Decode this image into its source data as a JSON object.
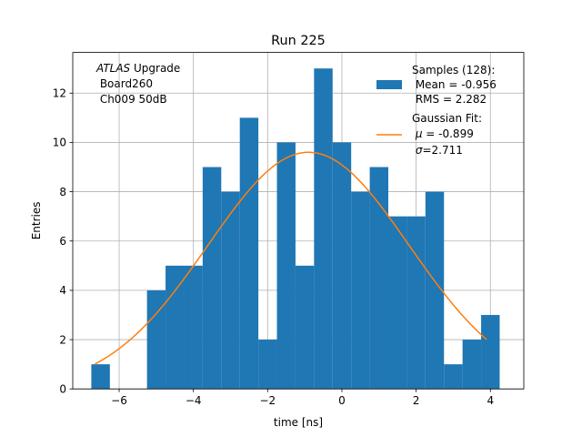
{
  "chart_data": {
    "type": "bar",
    "title": "Run 225",
    "xlabel": "time [ns]",
    "ylabel": "Entries",
    "xlim": [
      -7.25,
      4.9
    ],
    "ylim": [
      0,
      13.65
    ],
    "xticks": [
      -6,
      -4,
      -2,
      0,
      2,
      4
    ],
    "xtick_labels": [
      "−6",
      "−4",
      "−2",
      "0",
      "2",
      "4"
    ],
    "yticks": [
      0,
      2,
      4,
      6,
      8,
      10,
      12
    ],
    "ytick_labels": [
      "0",
      "2",
      "4",
      "6",
      "8",
      "10",
      "12"
    ],
    "grid": true,
    "bin_start": -6.75,
    "bin_width": 0.5,
    "values": [
      1,
      0,
      0,
      4,
      5,
      5,
      9,
      8,
      11,
      2,
      10,
      5,
      13,
      10,
      8,
      9,
      7,
      7,
      8,
      1,
      2,
      3
    ],
    "series": [
      {
        "name": "Samples (128):\n Mean = -0.956\n RMS = 2.282",
        "color": "#1f77b4",
        "kind": "histogram"
      },
      {
        "name": "Gaussian Fit:\n μ = -0.899\n σ=2.711",
        "color": "#ff7f0e",
        "kind": "line",
        "fit": {
          "amplitude": 9.6,
          "mu": -0.899,
          "sigma": 2.711,
          "x_start": -6.65,
          "x_end": 3.9
        }
      }
    ],
    "legend_position": "upper right",
    "annotation": {
      "line1_italic": "ATLAS",
      "line1_rest": " Upgrade",
      "line2": " Board260",
      "line3": " Ch009 50dB"
    },
    "legend": {
      "hist_lines": [
        "Samples (128):",
        " Mean = -0.956",
        " RMS = 2.282"
      ],
      "fit_line1": "Gaussian Fit:",
      "fit_mu_symbol": "μ",
      "fit_mu_value": " = -0.899",
      "fit_sigma_symbol": "σ",
      "fit_sigma_value": "=2.711"
    }
  }
}
